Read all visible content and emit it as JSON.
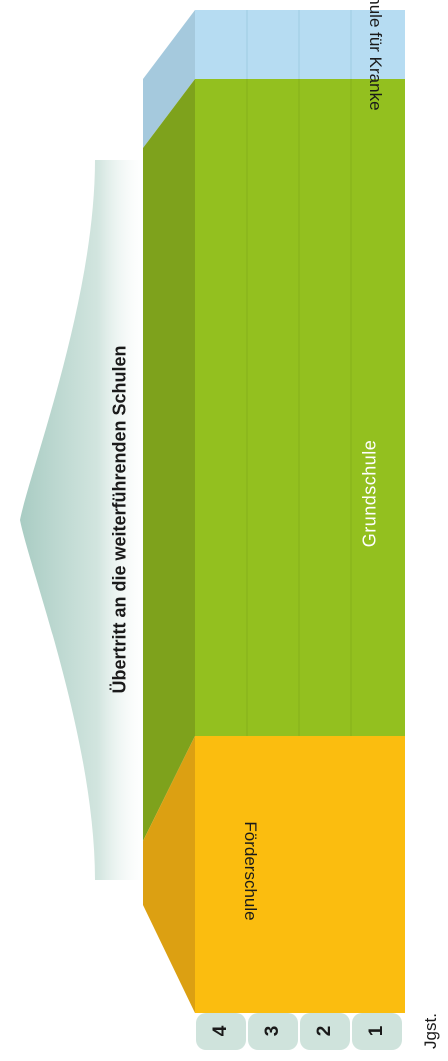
{
  "arrow_label": "Übertritt an die weiterführenden Schulen",
  "grundschule_label": "Grundschule",
  "foerderschule_label": "Förderschule",
  "krankenschule_label": "Schule für Kranke",
  "grade_caption": "Jgst.",
  "grades": [
    "4",
    "3",
    "2",
    "1"
  ],
  "colors": {
    "grundschule": "#93c01f",
    "grundschule_side": "#7ea21c",
    "foerderschule": "#fbbd0f",
    "foerderschule_side": "#dca012",
    "krankenschule": "#b6dcf2",
    "krankenschule_side": "#a5c9dd",
    "tab": "#cfe3dc",
    "arrow": "#a9ccc3"
  }
}
